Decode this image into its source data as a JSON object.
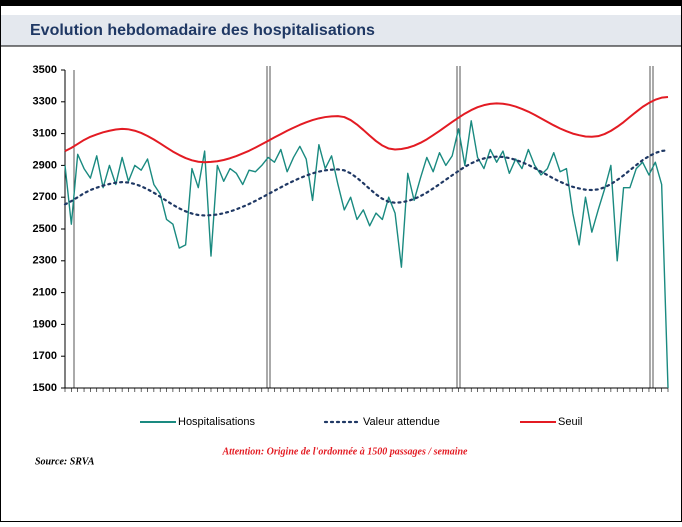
{
  "chart_data": {
    "type": "line",
    "title": "Evolution hebdomadaire des hospitalisations",
    "note": "Attention: Origine de l'ordonnée à 1500 passages / semaine",
    "source": "Source: SRVA",
    "categories": [
      null,
      null,
      null,
      null,
      null,
      null,
      null,
      null,
      null,
      null,
      null,
      null,
      null,
      null,
      null,
      null,
      null,
      null,
      null,
      null,
      null,
      null,
      null,
      null,
      null,
      null,
      null,
      null,
      null,
      null,
      null,
      null,
      null,
      null,
      null,
      null,
      null,
      null,
      null,
      null,
      null,
      null,
      null,
      null,
      null,
      null,
      null,
      null,
      null,
      null,
      null,
      null,
      null,
      null,
      null,
      null,
      null,
      null,
      null,
      null,
      null,
      null,
      null,
      null,
      null,
      null,
      null,
      null,
      null,
      null,
      null,
      null,
      null,
      null,
      null,
      null,
      null,
      null,
      null,
      null,
      null,
      null,
      null,
      null,
      null,
      null,
      null,
      null,
      null,
      null,
      null,
      null,
      null,
      null,
      null,
      null
    ],
    "ylim": [
      1500,
      3500
    ],
    "yticks": [
      1500,
      1700,
      1900,
      2100,
      2300,
      2500,
      2700,
      2900,
      3100,
      3300,
      3500
    ],
    "series": [
      {
        "name": "Hospitalisations",
        "color": "#1a8a80",
        "style": "solid",
        "values": [
          2900,
          2530,
          2970,
          2880,
          2820,
          2960,
          2760,
          2900,
          2780,
          2950,
          2800,
          2900,
          2870,
          2940,
          2780,
          2720,
          2560,
          2530,
          2380,
          2400,
          2880,
          2760,
          2990,
          2330,
          2900,
          2800,
          2880,
          2850,
          2780,
          2870,
          2860,
          2900,
          2950,
          2920,
          3000,
          2860,
          2950,
          3020,
          2940,
          2680,
          3030,
          2880,
          2960,
          2780,
          2620,
          2700,
          2560,
          2620,
          2520,
          2600,
          2560,
          2700,
          2600,
          2260,
          2850,
          2680,
          2820,
          2950,
          2860,
          2980,
          2900,
          2960,
          3130,
          2900,
          3180,
          2950,
          2880,
          3000,
          2920,
          2990,
          2850,
          2940,
          2880,
          3000,
          2900,
          2840,
          2880,
          2980,
          2860,
          2880,
          2600,
          2400,
          2700,
          2480,
          2620,
          2750,
          2900,
          2300,
          2760,
          2760,
          2880,
          2920,
          2840,
          2920,
          2780,
          1500
        ]
      },
      {
        "name": "Valeur attendue",
        "color": "#1f3864",
        "style": "dotted",
        "values": [
          2655,
          2675,
          2700,
          2725,
          2745,
          2760,
          2773,
          2783,
          2791,
          2795,
          2792,
          2783,
          2769,
          2750,
          2728,
          2703,
          2677,
          2652,
          2630,
          2611,
          2597,
          2588,
          2585,
          2587,
          2591,
          2599,
          2610,
          2624,
          2640,
          2657,
          2677,
          2698,
          2719,
          2741,
          2762,
          2783,
          2802,
          2820,
          2836,
          2850,
          2861,
          2869,
          2873,
          2875,
          2869,
          2850,
          2822,
          2788,
          2752,
          2718,
          2690,
          2671,
          2665,
          2668,
          2676,
          2689,
          2707,
          2729,
          2755,
          2782,
          2810,
          2838,
          2865,
          2891,
          2913,
          2931,
          2944,
          2952,
          2955,
          2953,
          2946,
          2935,
          2920,
          2903,
          2883,
          2861,
          2839,
          2817,
          2797,
          2780,
          2765,
          2755,
          2747,
          2745,
          2749,
          2762,
          2782,
          2808,
          2837,
          2870,
          2902,
          2933,
          2958,
          2978,
          2991,
          2995
        ]
      },
      {
        "name": "Seuil",
        "color": "#e31b23",
        "style": "solid",
        "values": [
          2990,
          3010,
          3035,
          3060,
          3080,
          3095,
          3108,
          3118,
          3126,
          3130,
          3127,
          3118,
          3104,
          3085,
          3063,
          3038,
          3012,
          2987,
          2965,
          2946,
          2932,
          2923,
          2920,
          2922,
          2926,
          2934,
          2945,
          2959,
          2975,
          2992,
          3012,
          3033,
          3054,
          3076,
          3097,
          3118,
          3137,
          3155,
          3171,
          3185,
          3196,
          3204,
          3208,
          3210,
          3204,
          3185,
          3157,
          3123,
          3087,
          3053,
          3025,
          3006,
          3000,
          3003,
          3011,
          3024,
          3042,
          3064,
          3090,
          3117,
          3145,
          3173,
          3200,
          3226,
          3248,
          3266,
          3279,
          3287,
          3290,
          3288,
          3281,
          3270,
          3255,
          3238,
          3218,
          3196,
          3174,
          3152,
          3132,
          3115,
          3100,
          3090,
          3082,
          3080,
          3084,
          3097,
          3117,
          3143,
          3172,
          3205,
          3237,
          3268,
          3293,
          3313,
          3326,
          3330
        ]
      }
    ]
  }
}
